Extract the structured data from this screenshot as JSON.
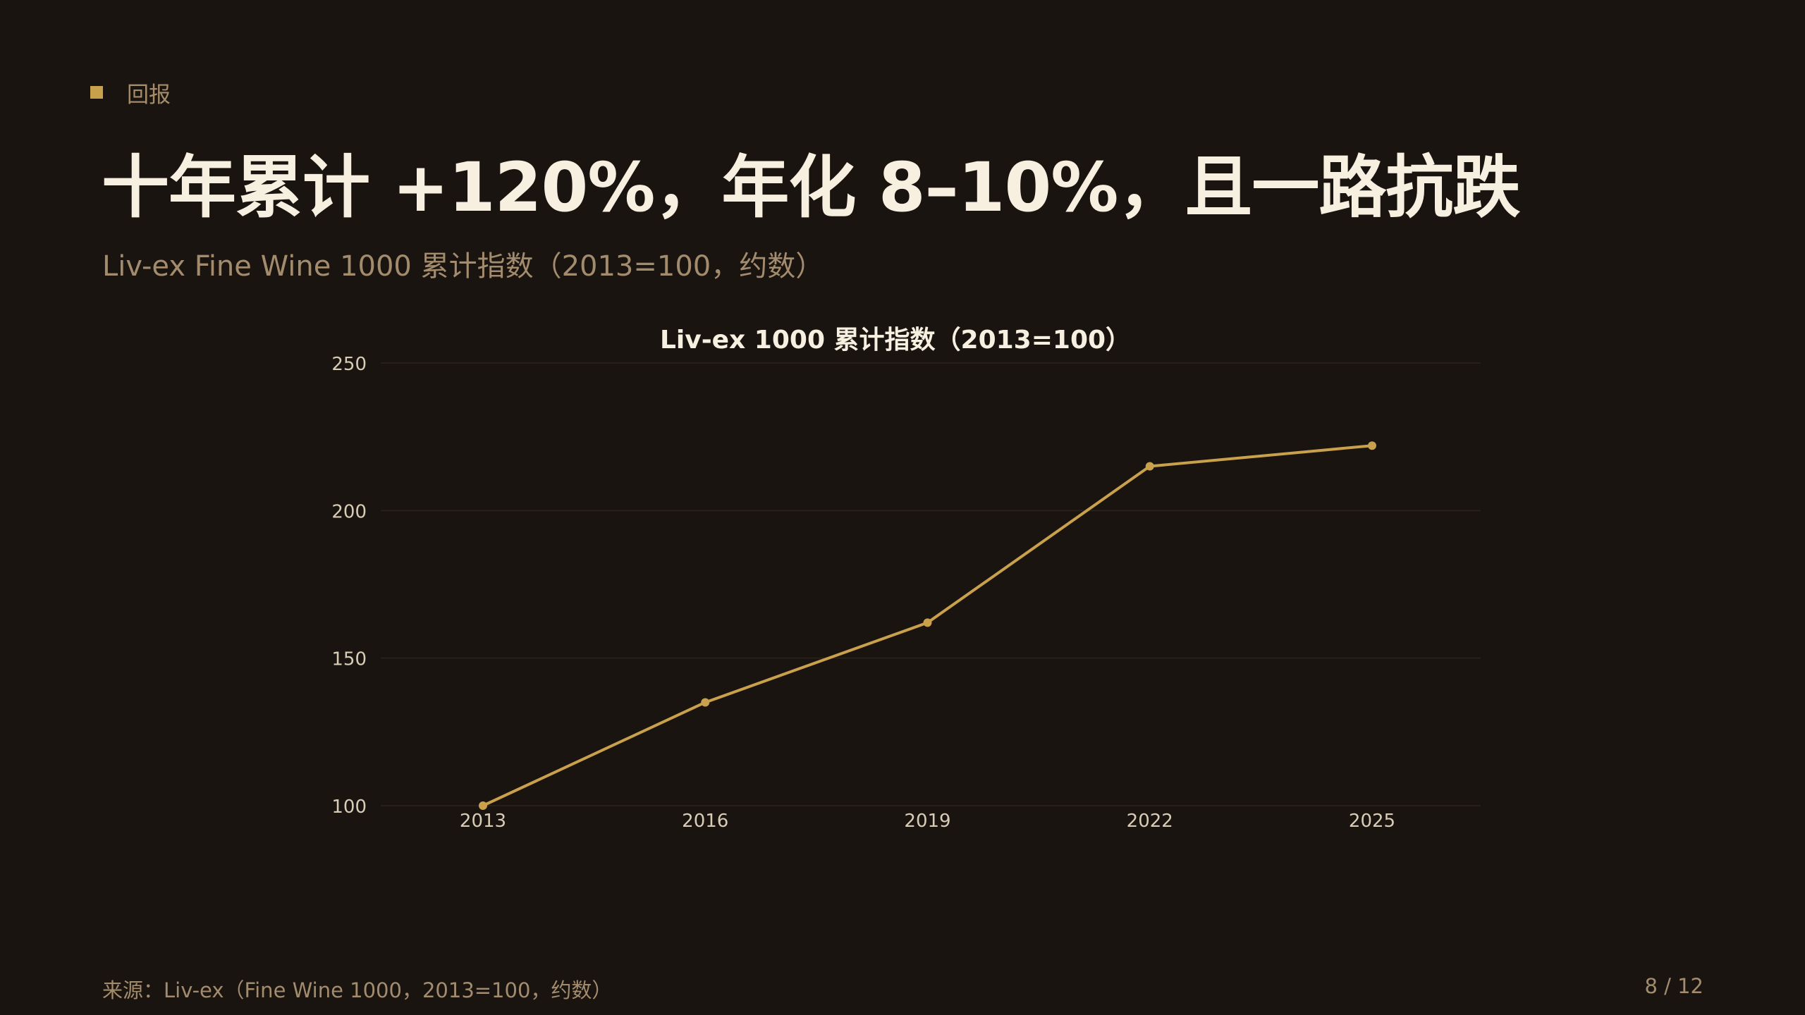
{
  "section": {
    "label": "回报"
  },
  "headline": "十年累计 +120%，年化 8–10%，且一路抗跌",
  "subtitle": "Liv-ex Fine Wine 1000 累计指数（2013=100，约数）",
  "footer": {
    "source": "来源：Liv-ex（Fine Wine 1000，2013=100，约数）",
    "page": "8 / 12"
  },
  "colors": {
    "background": "#19140f",
    "accent": "#c9a04c",
    "gridline": "#2a241c"
  },
  "chart_data": {
    "type": "line",
    "title": "Liv-ex 1000 累计指数（2013=100）",
    "xlabel": "",
    "ylabel": "",
    "x": [
      "2013",
      "2016",
      "2019",
      "2022",
      "2025"
    ],
    "series": [
      {
        "values": [
          100,
          135,
          162,
          215,
          222
        ]
      }
    ],
    "ylim": [
      100,
      250
    ],
    "yticks": [
      100,
      150,
      200,
      250
    ],
    "grid": true,
    "legend": "none"
  }
}
